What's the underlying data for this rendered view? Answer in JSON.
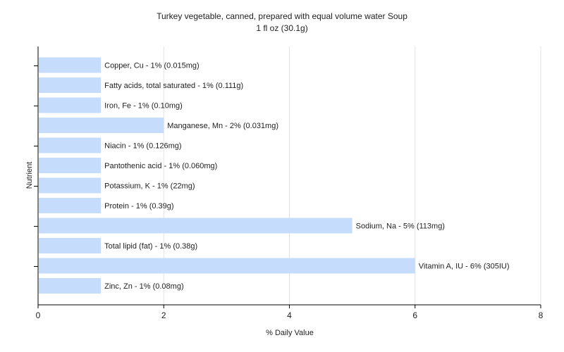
{
  "chart_data": {
    "type": "bar",
    "orientation": "horizontal",
    "title": "Turkey vegetable, canned, prepared with equal volume water Soup",
    "subtitle": "1 fl oz (30.1g)",
    "xlabel": "% Daily Value",
    "ylabel": "Nutrient",
    "xlim": [
      0,
      8
    ],
    "xticks": [
      0,
      2,
      4,
      6,
      8
    ],
    "grid": true,
    "bar_color": "#c6dcfc",
    "categories": [
      "Copper, Cu",
      "Fatty acids, total saturated",
      "Iron, Fe",
      "Manganese, Mn",
      "Niacin",
      "Pantothenic acid",
      "Potassium, K",
      "Protein",
      "Sodium, Na",
      "Total lipid (fat)",
      "Vitamin A, IU",
      "Zinc, Zn"
    ],
    "values": [
      1,
      1,
      1,
      2,
      1,
      1,
      1,
      1,
      5,
      1,
      6,
      1
    ],
    "labels": [
      "Copper, Cu - 1% (0.015mg)",
      "Fatty acids, total saturated - 1% (0.111g)",
      "Iron, Fe - 1% (0.10mg)",
      "Manganese, Mn - 2% (0.031mg)",
      "Niacin - 1% (0.126mg)",
      "Pantothenic acid - 1% (0.060mg)",
      "Potassium, K - 1% (22mg)",
      "Protein - 1% (0.39g)",
      "Sodium, Na - 5% (113mg)",
      "Total lipid (fat) - 1% (0.38g)",
      "Vitamin A, IU - 6% (305IU)",
      "Zinc, Zn - 1% (0.08mg)"
    ]
  }
}
